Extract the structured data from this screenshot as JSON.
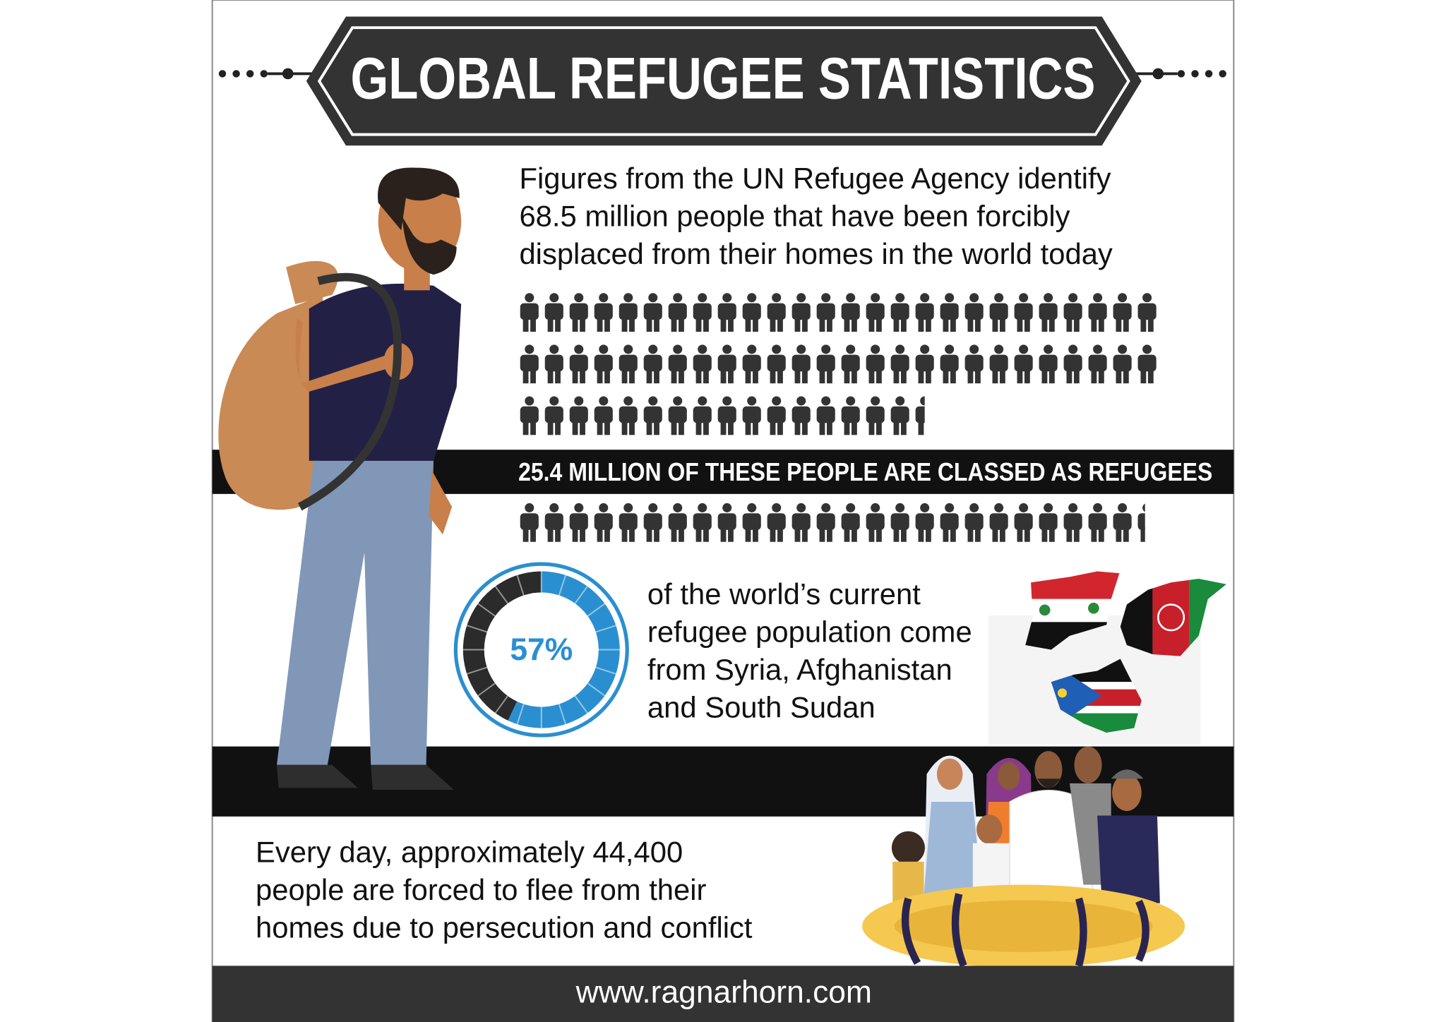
{
  "header": {
    "title": "GLOBAL REFUGEE STATISTICS"
  },
  "intro": {
    "lines": [
      "Figures from the UN Refugee Agency identify",
      "68.5 million people that have been forcibly",
      "displaced from their homes in the world today"
    ]
  },
  "pictogram": {
    "displaced": 68.5,
    "refugees": 25.4
  },
  "banner": "25.4 MILLION OF THESE PEOPLE ARE CLASSED AS REFUGEES",
  "donut": {
    "value": 57,
    "label": "57%"
  },
  "origin": {
    "lines": [
      "of the world’s current",
      "refugee population come",
      "from Syria, Afghanistan",
      "and South Sudan"
    ]
  },
  "daily": {
    "lines": [
      "Every day, approximately 44,400",
      "people are forced to flee from their",
      "homes due to persecution and conflict"
    ]
  },
  "footer": "www.ragnarhorn.com"
}
